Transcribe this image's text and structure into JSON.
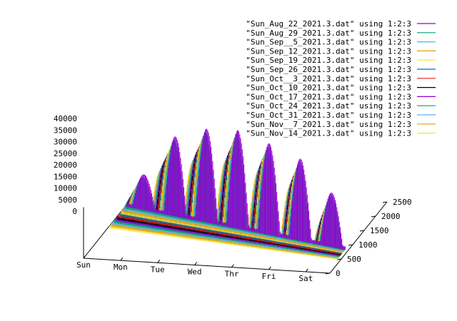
{
  "chart_data": {
    "type": "3d-impulse",
    "x_ticks": [
      "Sun",
      "Mon",
      "Tue",
      "Wed",
      "Thr",
      "Fri",
      "Sat"
    ],
    "y_ticks": [
      "0",
      "500",
      "1000",
      "1500",
      "2000",
      "2500"
    ],
    "z_ticks": [
      "0",
      "5000",
      "10000",
      "15000",
      "20000",
      "25000",
      "30000",
      "35000",
      "40000"
    ],
    "zlim": [
      0,
      40000
    ],
    "ylim": [
      0,
      2500
    ],
    "series": [
      {
        "name": "\"Sun_Aug_22_2021.3.dat\" using 1:2:3",
        "color": "#9400d3",
        "peaks": [
          14000,
          33000,
          39000,
          41000,
          38000,
          34000,
          22000
        ]
      },
      {
        "name": "\"Sun_Aug_29_2021.3.dat\" using 1:2:3",
        "color": "#009e73",
        "peaks": [
          13500,
          32000,
          38000,
          40000,
          37000,
          33000,
          21000
        ]
      },
      {
        "name": "\"Sun_Sep__5_2021.3.dat\" using 1:2:3",
        "color": "#56b4e9",
        "peaks": [
          13000,
          31000,
          37500,
          39500,
          36500,
          32500,
          20500
        ]
      },
      {
        "name": "\"Sun_Sep_12_2021.3.dat\" using 1:2:3",
        "color": "#e69f00",
        "peaks": [
          12500,
          30500,
          37000,
          39000,
          36000,
          32000,
          20000
        ]
      },
      {
        "name": "\"Sun_Sep_19_2021.3.dat\" using 1:2:3",
        "color": "#f0e442",
        "peaks": [
          12000,
          30000,
          36000,
          38000,
          35500,
          31500,
          19500
        ]
      },
      {
        "name": "\"Sun_Sep_26_2021.3.dat\" using 1:2:3",
        "color": "#0072b2",
        "peaks": [
          12000,
          29500,
          35500,
          37500,
          35000,
          31000,
          19000
        ]
      },
      {
        "name": "\"Sun_Oct__3_2021.3.dat\" using 1:2:3",
        "color": "#e51e10",
        "peaks": [
          11500,
          29000,
          35000,
          37000,
          34500,
          30500,
          18500
        ]
      },
      {
        "name": "\"Sun_Oct_10_2021.3.dat\" using 1:2:3",
        "color": "#000000",
        "peaks": [
          11000,
          28500,
          34500,
          36500,
          34000,
          30000,
          18000
        ]
      },
      {
        "name": "\"Sun_Oct_17_2021.3.dat\" using 1:2:3",
        "color": "#9400d3",
        "peaks": [
          11000,
          28000,
          34000,
          36000,
          33500,
          29500,
          17500
        ]
      },
      {
        "name": "\"Sun_Oct_24_2021.3.dat\" using 1:2:3",
        "color": "#009e73",
        "peaks": [
          10500,
          27500,
          33500,
          35500,
          33000,
          29000,
          17000
        ]
      },
      {
        "name": "\"Sun_Oct_31_2021.3.dat\" using 1:2:3",
        "color": "#56b4e9",
        "peaks": [
          10000,
          27000,
          33000,
          35000,
          32500,
          28500,
          16500
        ]
      },
      {
        "name": "\"Sun_Nov__7_2021.3.dat\" using 1:2:3",
        "color": "#e69f00",
        "peaks": [
          10000,
          26500,
          32500,
          34500,
          32000,
          28000,
          16000
        ]
      },
      {
        "name": "\"Sun_Nov_14_2021.3.dat\" using 1:2:3",
        "color": "#f0e442",
        "peaks": [
          9500,
          26000,
          32000,
          34000,
          31500,
          27500,
          15500
        ]
      }
    ]
  }
}
